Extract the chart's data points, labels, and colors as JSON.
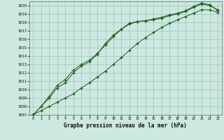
{
  "title": "Graphe pression niveau de la mer (hPa)",
  "bg_color": "#cce8e0",
  "grid_color": "#a8c8c0",
  "line_color": "#1a5c1a",
  "xlim": [
    -0.5,
    23.5
  ],
  "ylim": [
    1007,
    1020.5
  ],
  "xticks": [
    0,
    1,
    2,
    3,
    4,
    5,
    6,
    7,
    8,
    9,
    10,
    11,
    12,
    13,
    14,
    15,
    16,
    17,
    18,
    19,
    20,
    21,
    22,
    23
  ],
  "yticks": [
    1007,
    1008,
    1009,
    1010,
    1011,
    1012,
    1013,
    1014,
    1015,
    1016,
    1017,
    1018,
    1019,
    1020
  ],
  "series1": [
    1007.0,
    1008.0,
    1009.0,
    1010.2,
    1010.8,
    1012.0,
    1012.8,
    1013.3,
    1014.2,
    1015.5,
    1016.5,
    1017.2,
    1017.9,
    1018.1,
    1018.2,
    1018.3,
    1018.5,
    1018.8,
    1019.0,
    1019.3,
    1019.8,
    1020.2,
    1020.0,
    1019.5
  ],
  "series2": [
    1007.0,
    1008.0,
    1009.2,
    1010.5,
    1011.2,
    1012.3,
    1013.0,
    1013.5,
    1014.3,
    1015.3,
    1016.3,
    1017.2,
    1017.8,
    1018.1,
    1018.2,
    1018.4,
    1018.6,
    1018.9,
    1019.1,
    1019.4,
    1019.9,
    1020.3,
    1020.1,
    1019.4
  ],
  "series3": [
    1007.0,
    1007.5,
    1008.0,
    1008.5,
    1009.0,
    1009.5,
    1010.2,
    1010.8,
    1011.5,
    1012.2,
    1013.0,
    1013.8,
    1014.7,
    1015.5,
    1016.2,
    1016.8,
    1017.4,
    1017.9,
    1018.3,
    1018.7,
    1019.1,
    1019.5,
    1019.5,
    1019.2
  ]
}
